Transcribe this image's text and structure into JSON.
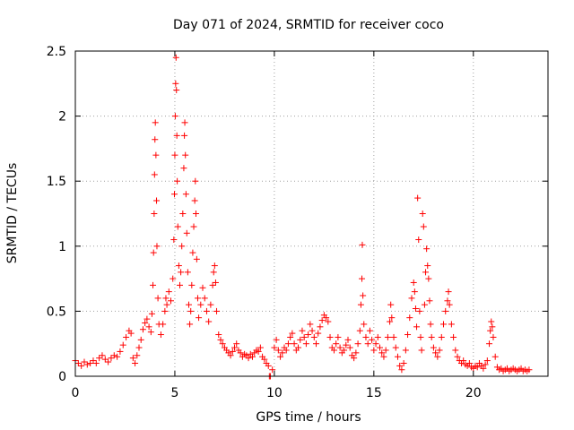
{
  "chart_data": {
    "type": "scatter",
    "title": "Day 071 of 2024, SRMTID for receiver coco",
    "xlabel": "GPS time / hours",
    "ylabel": "SRMTID / TECUs",
    "xlim": [
      0,
      23.75
    ],
    "ylim": [
      0,
      2.5
    ],
    "xticks": [
      0,
      5,
      10,
      15,
      20
    ],
    "yticks": [
      0,
      0.5,
      1,
      1.5,
      2,
      2.5
    ],
    "xtick_labels": [
      "0",
      "5",
      "10",
      "15",
      "20"
    ],
    "ytick_labels": [
      "0",
      "0.5",
      "1",
      "1.5",
      "2",
      "2.5"
    ],
    "grid": true,
    "marker": "+",
    "marker_color": "#ff0000",
    "series": [
      {
        "name": "SRMTID",
        "points": [
          [
            0.0,
            0.12
          ],
          [
            0.15,
            0.1
          ],
          [
            0.3,
            0.08
          ],
          [
            0.45,
            0.11
          ],
          [
            0.6,
            0.09
          ],
          [
            0.75,
            0.1
          ],
          [
            0.9,
            0.12
          ],
          [
            1.05,
            0.1
          ],
          [
            1.2,
            0.14
          ],
          [
            1.35,
            0.16
          ],
          [
            1.5,
            0.13
          ],
          [
            1.65,
            0.11
          ],
          [
            1.8,
            0.14
          ],
          [
            1.95,
            0.16
          ],
          [
            2.1,
            0.15
          ],
          [
            2.25,
            0.19
          ],
          [
            2.4,
            0.24
          ],
          [
            2.55,
            0.3
          ],
          [
            2.7,
            0.35
          ],
          [
            2.8,
            0.33
          ],
          [
            2.9,
            0.14
          ],
          [
            3.0,
            0.1
          ],
          [
            3.1,
            0.16
          ],
          [
            3.2,
            0.22
          ],
          [
            3.3,
            0.28
          ],
          [
            3.4,
            0.36
          ],
          [
            3.5,
            0.41
          ],
          [
            3.6,
            0.44
          ],
          [
            3.7,
            0.38
          ],
          [
            3.8,
            0.34
          ],
          [
            3.85,
            0.48
          ],
          [
            3.9,
            0.7
          ],
          [
            3.93,
            0.95
          ],
          [
            3.96,
            1.25
          ],
          [
            3.98,
            1.55
          ],
          [
            4.0,
            1.82
          ],
          [
            4.02,
            1.95
          ],
          [
            4.05,
            1.7
          ],
          [
            4.08,
            1.35
          ],
          [
            4.1,
            1.0
          ],
          [
            4.15,
            0.6
          ],
          [
            4.2,
            0.4
          ],
          [
            4.3,
            0.32
          ],
          [
            4.4,
            0.4
          ],
          [
            4.5,
            0.5
          ],
          [
            4.55,
            0.6
          ],
          [
            4.6,
            0.55
          ],
          [
            4.7,
            0.65
          ],
          [
            4.8,
            0.58
          ],
          [
            4.9,
            0.75
          ],
          [
            4.95,
            1.05
          ],
          [
            4.98,
            1.4
          ],
          [
            5.0,
            1.7
          ],
          [
            5.02,
            2.0
          ],
          [
            5.04,
            2.25
          ],
          [
            5.06,
            2.45
          ],
          [
            5.08,
            2.2
          ],
          [
            5.1,
            1.85
          ],
          [
            5.12,
            1.5
          ],
          [
            5.15,
            1.15
          ],
          [
            5.2,
            0.85
          ],
          [
            5.25,
            0.7
          ],
          [
            5.3,
            0.8
          ],
          [
            5.35,
            1.0
          ],
          [
            5.4,
            1.25
          ],
          [
            5.45,
            1.6
          ],
          [
            5.48,
            1.85
          ],
          [
            5.5,
            1.95
          ],
          [
            5.53,
            1.7
          ],
          [
            5.56,
            1.4
          ],
          [
            5.6,
            1.1
          ],
          [
            5.65,
            0.8
          ],
          [
            5.7,
            0.55
          ],
          [
            5.75,
            0.4
          ],
          [
            5.8,
            0.5
          ],
          [
            5.85,
            0.7
          ],
          [
            5.9,
            0.95
          ],
          [
            5.95,
            1.15
          ],
          [
            6.0,
            1.35
          ],
          [
            6.03,
            1.5
          ],
          [
            6.06,
            1.25
          ],
          [
            6.1,
            0.9
          ],
          [
            6.15,
            0.6
          ],
          [
            6.2,
            0.45
          ],
          [
            6.3,
            0.55
          ],
          [
            6.4,
            0.68
          ],
          [
            6.5,
            0.6
          ],
          [
            6.6,
            0.5
          ],
          [
            6.7,
            0.42
          ],
          [
            6.8,
            0.55
          ],
          [
            6.9,
            0.7
          ],
          [
            6.95,
            0.8
          ],
          [
            7.0,
            0.85
          ],
          [
            7.05,
            0.72
          ],
          [
            7.1,
            0.5
          ],
          [
            7.2,
            0.32
          ],
          [
            7.3,
            0.28
          ],
          [
            7.4,
            0.25
          ],
          [
            7.5,
            0.22
          ],
          [
            7.6,
            0.2
          ],
          [
            7.7,
            0.18
          ],
          [
            7.8,
            0.16
          ],
          [
            7.9,
            0.19
          ],
          [
            8.0,
            0.22
          ],
          [
            8.1,
            0.25
          ],
          [
            8.2,
            0.2
          ],
          [
            8.3,
            0.18
          ],
          [
            8.4,
            0.15
          ],
          [
            8.5,
            0.17
          ],
          [
            8.6,
            0.16
          ],
          [
            8.7,
            0.14
          ],
          [
            8.8,
            0.17
          ],
          [
            8.9,
            0.15
          ],
          [
            9.0,
            0.18
          ],
          [
            9.1,
            0.2
          ],
          [
            9.2,
            0.19
          ],
          [
            9.3,
            0.22
          ],
          [
            9.4,
            0.15
          ],
          [
            9.5,
            0.13
          ],
          [
            9.6,
            0.1
          ],
          [
            9.7,
            0.08
          ],
          [
            9.75,
            0.0
          ],
          [
            9.8,
            0.0
          ],
          [
            9.9,
            0.05
          ],
          [
            10.0,
            0.22
          ],
          [
            10.1,
            0.28
          ],
          [
            10.2,
            0.2
          ],
          [
            10.3,
            0.15
          ],
          [
            10.4,
            0.18
          ],
          [
            10.5,
            0.22
          ],
          [
            10.6,
            0.2
          ],
          [
            10.7,
            0.25
          ],
          [
            10.8,
            0.3
          ],
          [
            10.9,
            0.33
          ],
          [
            11.0,
            0.25
          ],
          [
            11.1,
            0.2
          ],
          [
            11.2,
            0.22
          ],
          [
            11.3,
            0.28
          ],
          [
            11.4,
            0.35
          ],
          [
            11.5,
            0.3
          ],
          [
            11.6,
            0.25
          ],
          [
            11.7,
            0.32
          ],
          [
            11.8,
            0.4
          ],
          [
            11.9,
            0.35
          ],
          [
            12.0,
            0.3
          ],
          [
            12.1,
            0.25
          ],
          [
            12.2,
            0.33
          ],
          [
            12.3,
            0.38
          ],
          [
            12.4,
            0.43
          ],
          [
            12.5,
            0.47
          ],
          [
            12.6,
            0.45
          ],
          [
            12.7,
            0.42
          ],
          [
            12.8,
            0.3
          ],
          [
            12.9,
            0.22
          ],
          [
            13.0,
            0.2
          ],
          [
            13.1,
            0.25
          ],
          [
            13.2,
            0.3
          ],
          [
            13.3,
            0.22
          ],
          [
            13.4,
            0.18
          ],
          [
            13.5,
            0.2
          ],
          [
            13.6,
            0.24
          ],
          [
            13.7,
            0.28
          ],
          [
            13.8,
            0.22
          ],
          [
            13.9,
            0.16
          ],
          [
            14.0,
            0.14
          ],
          [
            14.1,
            0.18
          ],
          [
            14.2,
            0.25
          ],
          [
            14.3,
            0.35
          ],
          [
            14.35,
            0.55
          ],
          [
            14.4,
            0.75
          ],
          [
            14.42,
            1.01
          ],
          [
            14.45,
            0.62
          ],
          [
            14.5,
            0.4
          ],
          [
            14.6,
            0.3
          ],
          [
            14.7,
            0.25
          ],
          [
            14.8,
            0.35
          ],
          [
            14.9,
            0.28
          ],
          [
            15.0,
            0.2
          ],
          [
            15.1,
            0.25
          ],
          [
            15.2,
            0.3
          ],
          [
            15.3,
            0.22
          ],
          [
            15.4,
            0.18
          ],
          [
            15.5,
            0.15
          ],
          [
            15.6,
            0.2
          ],
          [
            15.7,
            0.3
          ],
          [
            15.8,
            0.42
          ],
          [
            15.85,
            0.55
          ],
          [
            15.9,
            0.45
          ],
          [
            16.0,
            0.3
          ],
          [
            16.1,
            0.22
          ],
          [
            16.2,
            0.15
          ],
          [
            16.3,
            0.08
          ],
          [
            16.4,
            0.05
          ],
          [
            16.5,
            0.1
          ],
          [
            16.6,
            0.2
          ],
          [
            16.7,
            0.32
          ],
          [
            16.8,
            0.45
          ],
          [
            16.9,
            0.6
          ],
          [
            17.0,
            0.72
          ],
          [
            17.05,
            0.65
          ],
          [
            17.1,
            0.52
          ],
          [
            17.15,
            0.38
          ],
          [
            17.2,
            1.37
          ],
          [
            17.25,
            1.05
          ],
          [
            17.3,
            0.5
          ],
          [
            17.35,
            0.3
          ],
          [
            17.4,
            0.2
          ],
          [
            17.45,
            1.25
          ],
          [
            17.5,
            1.15
          ],
          [
            17.55,
            0.55
          ],
          [
            17.6,
            0.8
          ],
          [
            17.65,
            0.98
          ],
          [
            17.7,
            0.85
          ],
          [
            17.75,
            0.75
          ],
          [
            17.8,
            0.58
          ],
          [
            17.85,
            0.4
          ],
          [
            17.9,
            0.3
          ],
          [
            18.0,
            0.22
          ],
          [
            18.1,
            0.18
          ],
          [
            18.2,
            0.15
          ],
          [
            18.3,
            0.2
          ],
          [
            18.4,
            0.3
          ],
          [
            18.5,
            0.4
          ],
          [
            18.6,
            0.5
          ],
          [
            18.7,
            0.58
          ],
          [
            18.75,
            0.65
          ],
          [
            18.8,
            0.55
          ],
          [
            18.9,
            0.4
          ],
          [
            19.0,
            0.3
          ],
          [
            19.1,
            0.2
          ],
          [
            19.2,
            0.15
          ],
          [
            19.3,
            0.12
          ],
          [
            19.4,
            0.1
          ],
          [
            19.5,
            0.12
          ],
          [
            19.6,
            0.09
          ],
          [
            19.7,
            0.08
          ],
          [
            19.8,
            0.1
          ],
          [
            19.9,
            0.07
          ],
          [
            20.0,
            0.06
          ],
          [
            20.1,
            0.08
          ],
          [
            20.2,
            0.07
          ],
          [
            20.3,
            0.1
          ],
          [
            20.4,
            0.08
          ],
          [
            20.5,
            0.06
          ],
          [
            20.6,
            0.09
          ],
          [
            20.7,
            0.12
          ],
          [
            20.8,
            0.25
          ],
          [
            20.85,
            0.35
          ],
          [
            20.9,
            0.42
          ],
          [
            20.95,
            0.38
          ],
          [
            21.0,
            0.3
          ],
          [
            21.1,
            0.15
          ],
          [
            21.2,
            0.07
          ],
          [
            21.3,
            0.05
          ],
          [
            21.4,
            0.06
          ],
          [
            21.5,
            0.04
          ],
          [
            21.6,
            0.05
          ],
          [
            21.7,
            0.06
          ],
          [
            21.8,
            0.04
          ],
          [
            21.9,
            0.05
          ],
          [
            22.0,
            0.06
          ],
          [
            22.1,
            0.05
          ],
          [
            22.2,
            0.04
          ],
          [
            22.3,
            0.05
          ],
          [
            22.4,
            0.06
          ],
          [
            22.5,
            0.04
          ],
          [
            22.6,
            0.05
          ],
          [
            22.7,
            0.04
          ],
          [
            22.8,
            0.05
          ]
        ]
      }
    ]
  }
}
